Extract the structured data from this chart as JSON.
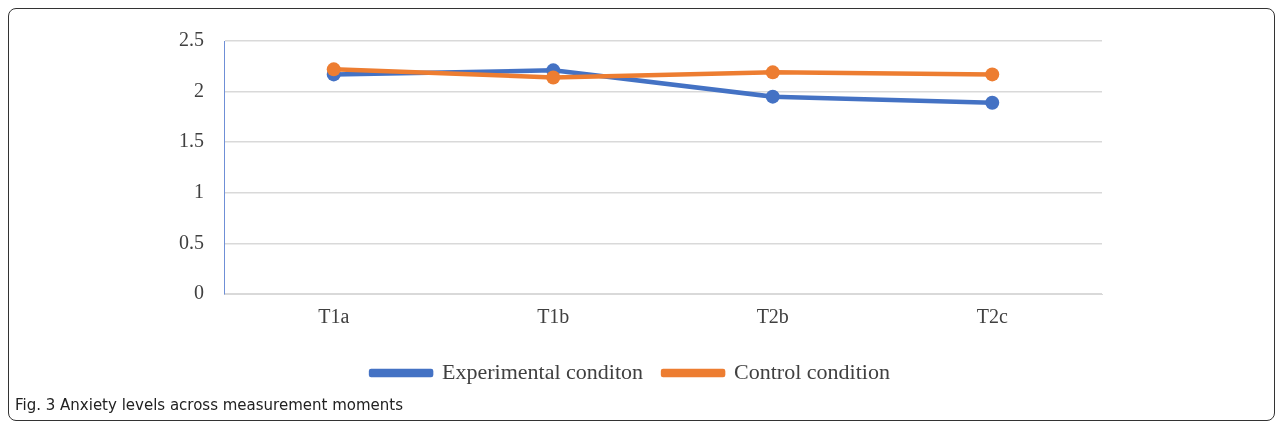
{
  "chart_data": {
    "type": "line",
    "categories": [
      "T1a",
      "T1b",
      "T2b",
      "T2c"
    ],
    "series": [
      {
        "name": "Experimental conditon",
        "color": "#4472c4",
        "values": [
          2.17,
          2.21,
          1.95,
          1.89
        ]
      },
      {
        "name": "Control condition",
        "color": "#ed7d31",
        "values": [
          2.22,
          2.14,
          2.19,
          2.17
        ]
      }
    ],
    "ylim": [
      0,
      2.5
    ],
    "yticks": [
      0,
      0.5,
      1,
      1.5,
      2,
      2.5
    ],
    "grid": "y",
    "legend": "bottom",
    "marker": "circle",
    "line_style": "solid",
    "annotations": [
      "Fig. 3  Anxiety levels across measurement moments"
    ]
  }
}
